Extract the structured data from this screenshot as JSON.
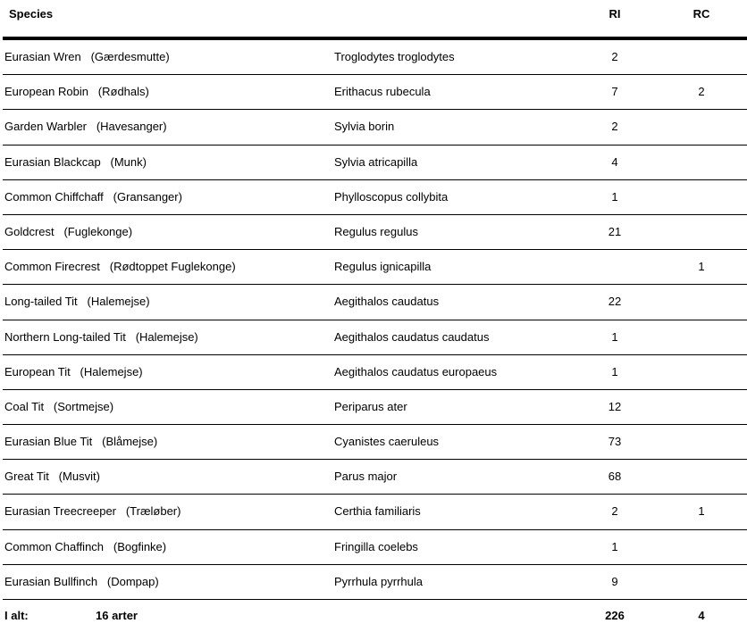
{
  "header": {
    "species": "Species",
    "ri": "RI",
    "rc": "RC"
  },
  "rows": [
    {
      "name": "Eurasian Wren   (Gærdesmutte)",
      "sci": "Troglodytes troglodytes",
      "ri": "2",
      "rc": ""
    },
    {
      "name": "European Robin   (Rødhals)",
      "sci": "Erithacus rubecula",
      "ri": "7",
      "rc": "2"
    },
    {
      "name": "Garden Warbler   (Havesanger)",
      "sci": "Sylvia borin",
      "ri": "2",
      "rc": ""
    },
    {
      "name": "Eurasian Blackcap   (Munk)",
      "sci": "Sylvia atricapilla",
      "ri": "4",
      "rc": ""
    },
    {
      "name": "Common Chiffchaff   (Gransanger)",
      "sci": "Phylloscopus collybita",
      "ri": "1",
      "rc": ""
    },
    {
      "name": "Goldcrest   (Fuglekonge)",
      "sci": "Regulus regulus",
      "ri": "21",
      "rc": ""
    },
    {
      "name": "Common Firecrest   (Rødtoppet Fuglekonge)",
      "sci": "Regulus ignicapilla",
      "ri": "",
      "rc": "1"
    },
    {
      "name": "Long-tailed Tit   (Halemejse)",
      "sci": "Aegithalos caudatus",
      "ri": "22",
      "rc": ""
    },
    {
      "name": "Northern Long-tailed Tit   (Halemejse)",
      "sci": "Aegithalos caudatus caudatus",
      "ri": "1",
      "rc": ""
    },
    {
      "name": "European Tit   (Halemejse)",
      "sci": "Aegithalos caudatus europaeus",
      "ri": "1",
      "rc": ""
    },
    {
      "name": "Coal Tit   (Sortmejse)",
      "sci": "Periparus ater",
      "ri": "12",
      "rc": ""
    },
    {
      "name": "Eurasian Blue Tit   (Blåmejse)",
      "sci": "Cyanistes caeruleus",
      "ri": "73",
      "rc": ""
    },
    {
      "name": "Great Tit   (Musvit)",
      "sci": "Parus major",
      "ri": "68",
      "rc": ""
    },
    {
      "name": "Eurasian Treecreeper   (Træløber)",
      "sci": "Certhia familiaris",
      "ri": "2",
      "rc": "1"
    },
    {
      "name": "Common Chaffinch   (Bogfinke)",
      "sci": "Fringilla coelebs",
      "ri": "1",
      "rc": ""
    },
    {
      "name": "Eurasian Bullfinch   (Dompap)",
      "sci": "Pyrrhula pyrrhula",
      "ri": "9",
      "rc": ""
    }
  ],
  "total": {
    "label": "I alt:",
    "count": "16 arter",
    "ri": "226",
    "rc": "4"
  }
}
